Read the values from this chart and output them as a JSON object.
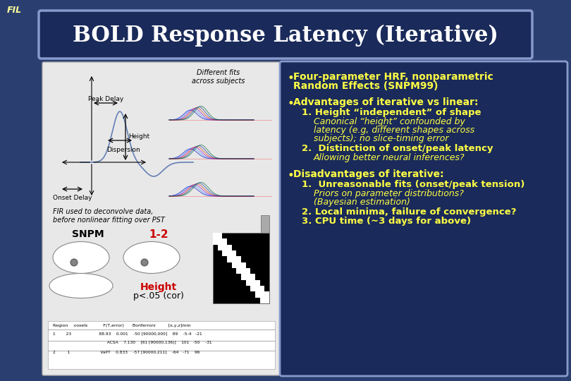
{
  "background_color": "#2a3f6f",
  "title": "BOLD Response Latency (Iterative)",
  "title_color": "#ffffff",
  "title_bg_color": "#1a2a5a",
  "title_border_color": "#8899cc",
  "fil_text": "FIL",
  "fil_color": "#ffff99",
  "right_panel_bg": "#1a2a5a",
  "right_panel_border": "#8899cc",
  "left_text1": "FIR used to deconvolve data,",
  "left_text2": "before nonlinear fitting over PST",
  "snpm_label": "SNPM",
  "snpm_label_color": "#000000",
  "num_label": "1-2",
  "num_label_color": "#cc0000",
  "height_label": "Height",
  "height_label_color": "#cc0000",
  "pcor_label": "p<.05 (cor)",
  "diff_fits_text": "Different fits\nacross subjects",
  "yellow_color": "#ffff44",
  "white_color": "#ffffff"
}
